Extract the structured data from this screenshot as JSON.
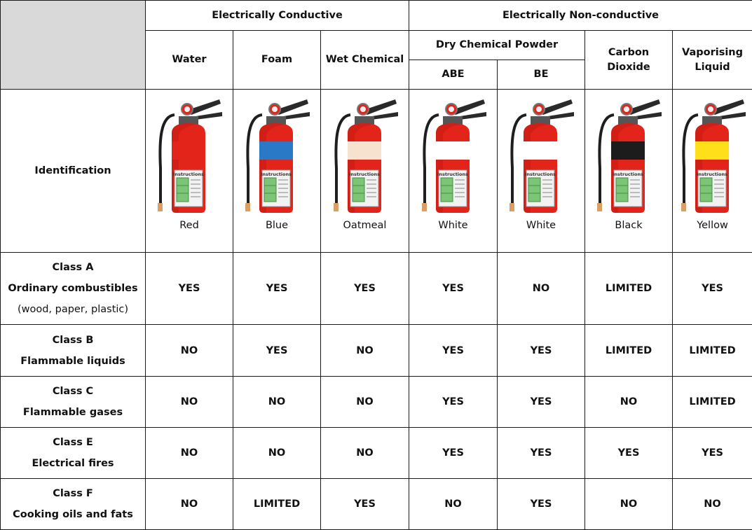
{
  "groups": {
    "conductive": "Electrically Conductive",
    "nonconductive": "Electrically Non-conductive"
  },
  "subgroup_dry": "Dry Chemical Powder",
  "columns": [
    {
      "label": "Water",
      "color_name": "Red",
      "band_color": "#e3241b"
    },
    {
      "label": "Foam",
      "color_name": "Blue",
      "band_color": "#2a79c7"
    },
    {
      "label": "Wet Chemical",
      "color_name": "Oatmeal",
      "band_color": "#f6e2cf"
    },
    {
      "label": "ABE",
      "color_name": "White",
      "band_color": "#ffffff"
    },
    {
      "label": "BE",
      "color_name": "White",
      "band_color": "#ffffff"
    },
    {
      "label": "Carbon Dioxide",
      "color_name": "Black",
      "band_color": "#1c1c1c"
    },
    {
      "label": "Vaporising Liquid",
      "color_name": "Yellow",
      "band_color": "#ffdf1a"
    }
  ],
  "identification_label": "Identification",
  "instructions_text": "Instructions",
  "rows": [
    {
      "lines": [
        {
          "text": "Class A",
          "bold": true
        },
        {
          "text": "Ordinary combustibles",
          "bold": true
        },
        {
          "text": "(wood, paper, plastic)",
          "bold": false
        }
      ],
      "values": [
        "YES",
        "YES",
        "YES",
        "YES",
        "NO",
        "LIMITED",
        "YES"
      ]
    },
    {
      "lines": [
        {
          "text": "Class B",
          "bold": true
        },
        {
          "text": "Flammable liquids",
          "bold": true
        }
      ],
      "values": [
        "NO",
        "YES",
        "NO",
        "YES",
        "YES",
        "LIMITED",
        "LIMITED"
      ]
    },
    {
      "lines": [
        {
          "text": "Class C",
          "bold": true
        },
        {
          "text": "Flammable gases",
          "bold": true
        }
      ],
      "values": [
        "NO",
        "NO",
        "NO",
        "YES",
        "YES",
        "NO",
        "LIMITED"
      ]
    },
    {
      "lines": [
        {
          "text": "Class E",
          "bold": true
        },
        {
          "text": "Electrical fires",
          "bold": true
        }
      ],
      "values": [
        "NO",
        "NO",
        "NO",
        "YES",
        "YES",
        "YES",
        "YES"
      ]
    },
    {
      "lines": [
        {
          "text": "Class F",
          "bold": true
        },
        {
          "text": "Cooking oils and fats",
          "bold": true
        }
      ],
      "values": [
        "NO",
        "LIMITED",
        "YES",
        "NO",
        "YES",
        "NO",
        "NO"
      ]
    }
  ],
  "colors": {
    "extinguisher_body": "#e3241b",
    "extinguisher_dark": "#b0160f",
    "hose": "#1e1e1e",
    "label_green": "#7cc576",
    "header_corner": "#d9d9d9"
  }
}
